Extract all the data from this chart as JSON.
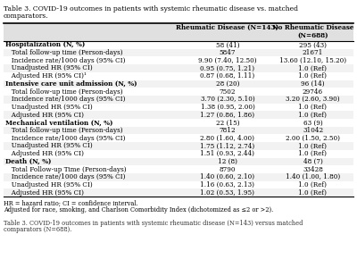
{
  "title_line1": "Table 3. COVID-19 outcomes in patients with systemic rheumatic disease vs. matched",
  "title_line2": "comparators.",
  "col1_header": "Rheumatic Disease (N=143)",
  "col2_header": "No Rheumatic Disease\n(N=688)",
  "footer1": "HR = hazard ratio; CI = confidence interval.",
  "footer2": "Adjusted for race, smoking, and Charlson Comorbidity Index (dichotomized as ≤2 or >2).",
  "footer3_line1": "Table 3. COVID-19 outcomes in patients with systemic rheumatic disease (N=143) versus matched",
  "footer3_line2": "comparators (N=688).",
  "rows": [
    {
      "label": "Hospitalization (N, %)",
      "col1": "58 (41)",
      "col2": "295 (43)",
      "bold": true,
      "indent": 0
    },
    {
      "label": "   Total follow-up time (Person-days)",
      "col1": "5847",
      "col2": "21671",
      "bold": false,
      "indent": 0
    },
    {
      "label": "   Incidence rate/1000 days (95% CI)",
      "col1": "9.90 (7.40, 12.50)",
      "col2": "13.60 (12.10, 15.20)",
      "bold": false,
      "indent": 0
    },
    {
      "label": "   Unadjusted HR (95% CI)",
      "col1": "0.95 (0.75, 1.21)",
      "col2": "1.0 (Ref)",
      "bold": false,
      "indent": 0
    },
    {
      "label": "   Adjusted HR (95% CI)¹",
      "col1": "0.87 (0.68, 1.11)",
      "col2": "1.0 (Ref)",
      "bold": false,
      "indent": 0
    },
    {
      "label": "Intensive care unit admission (N, %)",
      "col1": "28 (20)",
      "col2": "96 (14)",
      "bold": true,
      "indent": 0
    },
    {
      "label": "   Total follow-up time (Person-days)",
      "col1": "7502",
      "col2": "29746",
      "bold": false,
      "indent": 0
    },
    {
      "label": "   Incidence rate/1000 days (95% CI)",
      "col1": "3.70 (2.30, 5.10)",
      "col2": "3.20 (2.60, 3.90)",
      "bold": false,
      "indent": 0
    },
    {
      "label": "   Unadjusted HR (95% CI)",
      "col1": "1.38 (0.95, 2.00)",
      "col2": "1.0 (Ref)",
      "bold": false,
      "indent": 0
    },
    {
      "label": "   Adjusted HR (95% CI)",
      "col1": "1.27 (0.86, 1.86)",
      "col2": "1.0 (Ref)",
      "bold": false,
      "indent": 0
    },
    {
      "label": "Mechanical ventilation (N, %)",
      "col1": "22 (15)",
      "col2": "63 (9)",
      "bold": true,
      "indent": 0
    },
    {
      "label": "   Total follow-up time (Person-days)",
      "col1": "7812",
      "col2": "31042",
      "bold": false,
      "indent": 0
    },
    {
      "label": "   Incidence rate/1000 days (95% CI)",
      "col1": "2.80 (1.60, 4.00)",
      "col2": "2.00 (1.50, 2.50)",
      "bold": false,
      "indent": 0
    },
    {
      "label": "   Unadjusted HR (95% CI)",
      "col1": "1.75 (1.12, 2.74)",
      "col2": "1.0 (Ref)",
      "bold": false,
      "indent": 0
    },
    {
      "label": "   Adjusted HR (95% CI)",
      "col1": "1.51 (0.93, 2.44)",
      "col2": "1.0 (Ref)",
      "bold": false,
      "indent": 0
    },
    {
      "label": "Death (N, %)",
      "col1": "12 (8)",
      "col2": "48 (7)",
      "bold": true,
      "indent": 0
    },
    {
      "label": "   Total Follow-up Time (Person-days)",
      "col1": "8790",
      "col2": "33428",
      "bold": false,
      "indent": 0
    },
    {
      "label": "   Incidence rate/1000 days (95% CI)",
      "col1": "1.40 (0.60, 2.10)",
      "col2": "1.40 (1.00, 1.80)",
      "bold": false,
      "indent": 0
    },
    {
      "label": "   Unadjusted HR (95% CI)",
      "col1": "1.16 (0.63, 2.13)",
      "col2": "1.0 (Ref)",
      "bold": false,
      "indent": 0
    },
    {
      "label": "   Adjusted HR (95% CI)",
      "col1": "1.02 (0.53, 1.95)",
      "col2": "1.0 (Ref)",
      "bold": false,
      "indent": 0
    }
  ],
  "bg_color": "#ffffff",
  "font_size": 5.2,
  "title_font_size": 5.5,
  "footer_font_size": 4.8
}
